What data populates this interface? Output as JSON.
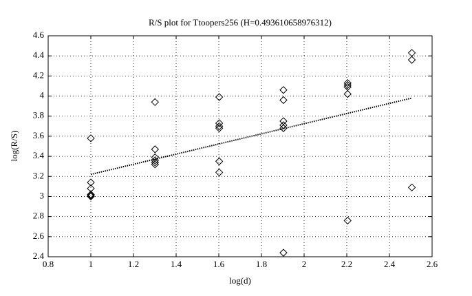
{
  "chart_data": {
    "type": "scatter",
    "title": "R/S plot for Ttoopers256 (H=0.493610658976312)",
    "x_label": "log(d)",
    "y_label": "log(R/S)",
    "series": [
      {
        "color": "#000000",
        "marker": "diamond",
        "x": [
          1,
          1,
          1,
          1,
          1,
          1,
          1.301,
          1.301,
          1.301,
          1.301,
          1.301,
          1.301,
          1.602,
          1.602,
          1.602,
          1.602,
          1.602,
          1.602,
          1.903,
          1.903,
          1.903,
          1.903,
          1.903,
          1.903,
          2.204,
          2.204,
          2.204,
          2.204,
          2.204,
          2.505,
          2.505,
          2.505
        ],
        "values": [
          3.58,
          3.14,
          3.08,
          3.02,
          3.01,
          3.0,
          3.94,
          3.47,
          3.39,
          3.36,
          3.34,
          3.32,
          3.99,
          3.73,
          3.7,
          3.68,
          3.35,
          3.24,
          4.06,
          3.96,
          3.75,
          3.71,
          3.68,
          2.44,
          4.13,
          4.11,
          4.09,
          4.02,
          2.76,
          4.43,
          4.36,
          3.09
        ]
      }
    ],
    "fit": {
      "color": "#000000",
      "style": "dotted",
      "x": [
        1,
        2.505
      ],
      "values": [
        3.22,
        3.98
      ]
    },
    "xlim": [
      0.8,
      2.6
    ],
    "xticks": [
      0.8,
      1,
      1.2,
      1.4,
      1.6,
      1.8,
      2,
      2.2,
      2.4,
      2.6
    ],
    "ylim": [
      2.4,
      4.6
    ],
    "yticks": [
      2.4,
      2.6,
      2.8,
      3,
      3.2,
      3.4,
      3.6,
      3.8,
      4,
      4.2,
      4.4,
      4.6
    ],
    "grid": true
  }
}
